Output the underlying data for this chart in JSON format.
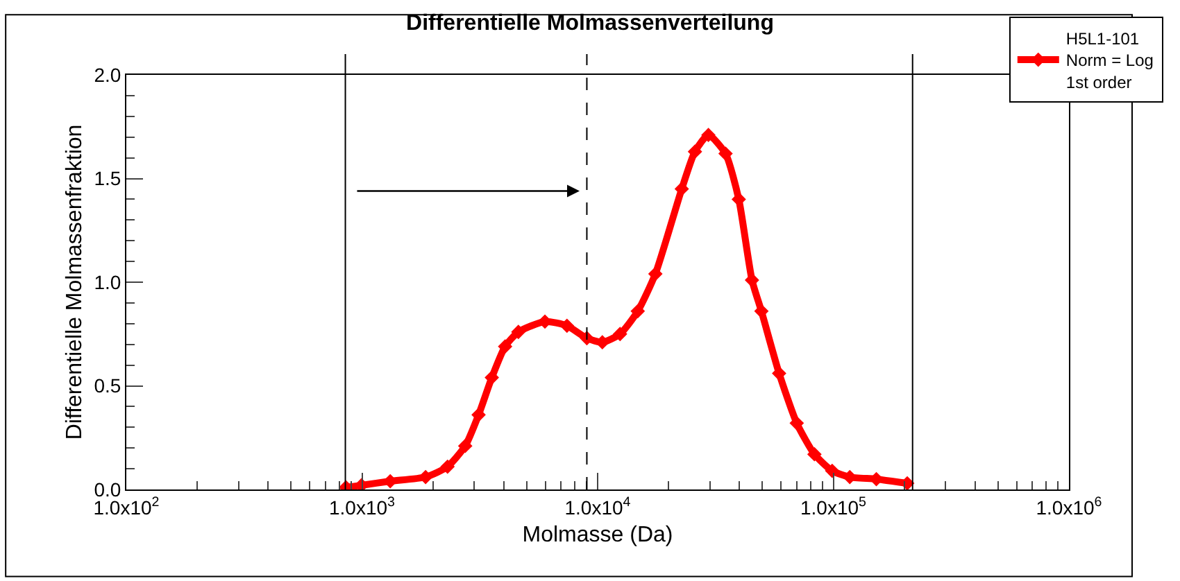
{
  "chart_data": {
    "type": "line",
    "title": "Differentielle Molmassenverteilung",
    "xlabel": "Molmasse (Da)",
    "ylabel": "Differentielle Molmassenfraktion",
    "log": "x",
    "grid": false,
    "legend": "top right",
    "marker": "diamond",
    "line_style": "solid",
    "xlim": [
      100,
      1000000
    ],
    "xticks": [
      {
        "value": 100,
        "label": "1.0x10$^{2}$"
      },
      {
        "value": 1000,
        "label": "1.0x10$^{3}$"
      },
      {
        "value": 10000,
        "label": "1.0x10$^{4}$"
      },
      {
        "value": 100000,
        "label": "1.0x10$^{5}$"
      },
      {
        "value": 1000000,
        "label": "1.0x10$^{6}$"
      }
    ],
    "ylim": [
      0,
      2.0
    ],
    "yticks": [
      {
        "value": 0,
        "label": "0.0"
      },
      {
        "value": 0.5,
        "label": "0.5"
      },
      {
        "value": 1.0,
        "label": "1.0"
      },
      {
        "value": 1.5,
        "label": "1.5"
      },
      {
        "value": 2.0,
        "label": "2.0"
      }
    ],
    "series": [
      {
        "name": "H5L1-101\nNorm = Log\n1st order",
        "color": "#ff0000",
        "x": [
          855,
          995,
          1318,
          1862,
          2307,
          2742,
          3125,
          3556,
          4050,
          4610,
          5975,
          7410,
          9000,
          10470,
          12450,
          14800,
          17580,
          22750,
          25880,
          29510,
          34900,
          39720,
          45190,
          49550,
          58900,
          69980,
          83180,
          98900,
          117500,
          152300,
          206000
        ],
        "values": [
          0.01,
          0.02,
          0.04,
          0.06,
          0.11,
          0.21,
          0.36,
          0.54,
          0.69,
          0.76,
          0.81,
          0.79,
          0.73,
          0.71,
          0.75,
          0.86,
          1.04,
          1.45,
          1.63,
          1.71,
          1.62,
          1.4,
          1.01,
          0.86,
          0.56,
          0.32,
          0.17,
          0.09,
          0.06,
          0.05,
          0.03
        ]
      }
    ],
    "ref_lines": [
      {
        "axis": "x",
        "value": 850,
        "color": "#000000",
        "line_style": "solid"
      },
      {
        "axis": "x",
        "value": 9000,
        "color": "#000000",
        "line_style": "dashed"
      },
      {
        "axis": "x",
        "value": 217000,
        "color": "#000000",
        "line_style": "solid"
      }
    ]
  }
}
